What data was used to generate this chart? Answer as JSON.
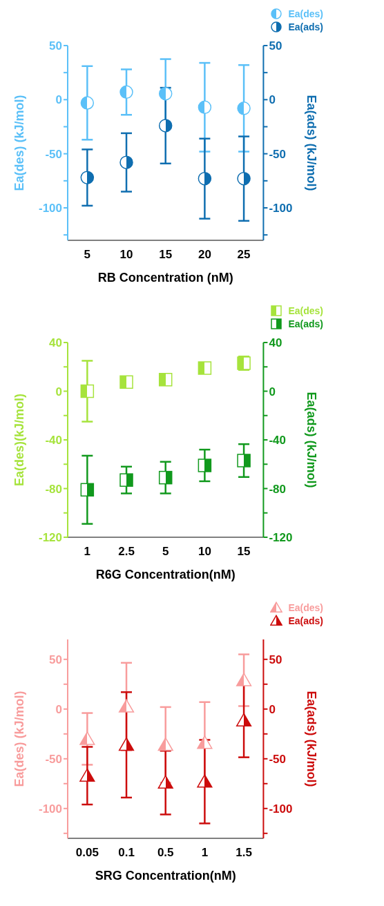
{
  "chart_data": [
    {
      "type": "scatter",
      "xlabel": "RB Concentration (nM)",
      "ylabel": "Ea(des) (kJ/mol)",
      "y2label": "Ea(ads) (kJ/mol)",
      "categories": [
        "5",
        "10",
        "15",
        "20",
        "25"
      ],
      "marker": "circle",
      "legend": "top right",
      "grid": false,
      "ylim": [
        -130,
        50
      ],
      "yticks": [
        {
          "value": -125,
          "label": null
        },
        -100,
        {
          "value": -75,
          "label": null
        },
        -50,
        {
          "value": -25,
          "label": null
        },
        0,
        {
          "value": 25,
          "label": null
        },
        50
      ],
      "y2lim": [
        -130,
        50
      ],
      "y2ticks": [
        {
          "value": -125,
          "label": null
        },
        -100,
        {
          "value": -75,
          "label": null
        },
        -50,
        {
          "value": -25,
          "label": null
        },
        0,
        {
          "value": 25,
          "label": null
        },
        50
      ],
      "series": [
        {
          "name": "Ea(des)",
          "color": "#5bc0f8",
          "values": [
            -3,
            7,
            5.5,
            -7,
            -8
          ],
          "errors": [
            34,
            21,
            32,
            41,
            40
          ]
        },
        {
          "name": "Ea(ads)",
          "color": "#0f6eb0",
          "axis": "y2",
          "values": [
            -72,
            -58,
            -24,
            -73,
            -73
          ],
          "errors": [
            26,
            27,
            35,
            37,
            39
          ]
        }
      ]
    },
    {
      "type": "scatter",
      "xlabel": "R6G Concentration(nM)",
      "ylabel": "Ea(des)(kJ/mol)",
      "y2label": "Ea(ads) (kJ/mol)",
      "categories": [
        "1",
        "2.5",
        "5",
        "10",
        "15"
      ],
      "marker": "square",
      "legend": "top right",
      "grid": false,
      "ylim": [
        -120,
        40
      ],
      "yticks": [
        -120,
        {
          "value": -100,
          "label": null
        },
        -80,
        {
          "value": -60,
          "label": null
        },
        -40,
        {
          "value": -20,
          "label": null
        },
        0,
        {
          "value": 20,
          "label": null
        },
        40
      ],
      "y2lim": [
        -120,
        40
      ],
      "y2ticks": [
        -120,
        {
          "value": -100,
          "label": null
        },
        -80,
        {
          "value": -60,
          "label": null
        },
        -40,
        {
          "value": -20,
          "label": null
        },
        0,
        {
          "value": 20,
          "label": null
        },
        40
      ],
      "series": [
        {
          "name": "Ea(des)",
          "color": "#a6e33c",
          "values": [
            0,
            7.5,
            9.5,
            19,
            23
          ],
          "errors": [
            25,
            4,
            4.5,
            3,
            5.5
          ]
        },
        {
          "name": "Ea(ads)",
          "color": "#11991d",
          "axis": "y2",
          "values": [
            -81,
            -73,
            -71,
            -61,
            -57
          ],
          "errors": [
            28,
            11,
            13,
            13,
            13.5
          ]
        }
      ]
    },
    {
      "type": "scatter",
      "xlabel": "SRG Concentration(nM)",
      "ylabel": "Ea(des) (kJ/mol)",
      "y2label": "Ea(ads) (kJ/mol)",
      "categories": [
        "0.05",
        "0.1",
        "0.5",
        "1",
        "1.5"
      ],
      "marker": "triangle",
      "legend": "top right",
      "grid": false,
      "ylim": [
        -130,
        70
      ],
      "yticks": [
        {
          "value": -125,
          "label": null
        },
        -100,
        {
          "value": -75,
          "label": null
        },
        -50,
        {
          "value": -25,
          "label": null
        },
        0,
        {
          "value": 25,
          "label": null
        },
        50
      ],
      "y2lim": [
        -130,
        70
      ],
      "y2ticks": [
        {
          "value": -125,
          "label": null
        },
        -100,
        {
          "value": -75,
          "label": null
        },
        -50,
        {
          "value": -25,
          "label": null
        },
        0,
        {
          "value": 25,
          "label": null
        },
        50
      ],
      "series": [
        {
          "name": "Ea(des)",
          "color": "#f89c9c",
          "values": [
            -30,
            2.5,
            -36,
            -34,
            29
          ],
          "errors": [
            26,
            44,
            38,
            41,
            26
          ]
        },
        {
          "name": "Ea(ads)",
          "color": "#cc0c0c",
          "axis": "y2",
          "values": [
            -67,
            -36,
            -74,
            -73,
            -11.5
          ],
          "errors": [
            29,
            53,
            32,
            42,
            37
          ]
        }
      ]
    }
  ]
}
